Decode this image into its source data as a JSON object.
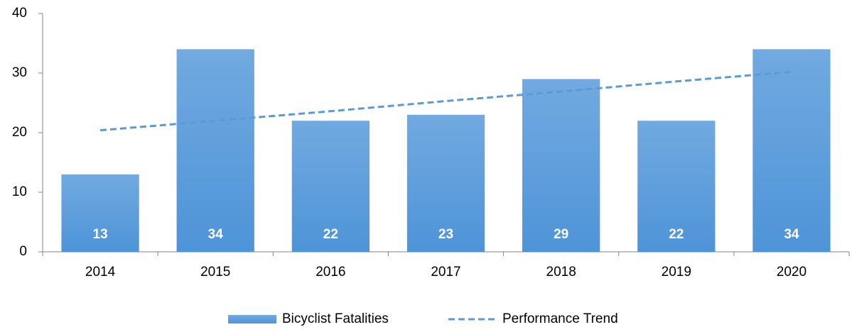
{
  "chart_data": {
    "type": "bar",
    "categories": [
      "2014",
      "2015",
      "2016",
      "2017",
      "2018",
      "2019",
      "2020"
    ],
    "series": [
      {
        "name": "Bicyclist Fatalities",
        "type": "bar",
        "color": "#4e94d8",
        "values": [
          13,
          34,
          22,
          23,
          29,
          22,
          34
        ]
      },
      {
        "name": "Performance Trend",
        "type": "line",
        "style": "dashed",
        "color": "#5b9bd5",
        "values": [
          20.4,
          22.0,
          23.6,
          25.3,
          26.9,
          28.6,
          30.2
        ]
      }
    ],
    "ylim": [
      0,
      40
    ],
    "yticks": [
      0,
      10,
      20,
      30,
      40
    ],
    "grid": false,
    "data_labels": true,
    "legend": "bottom"
  }
}
